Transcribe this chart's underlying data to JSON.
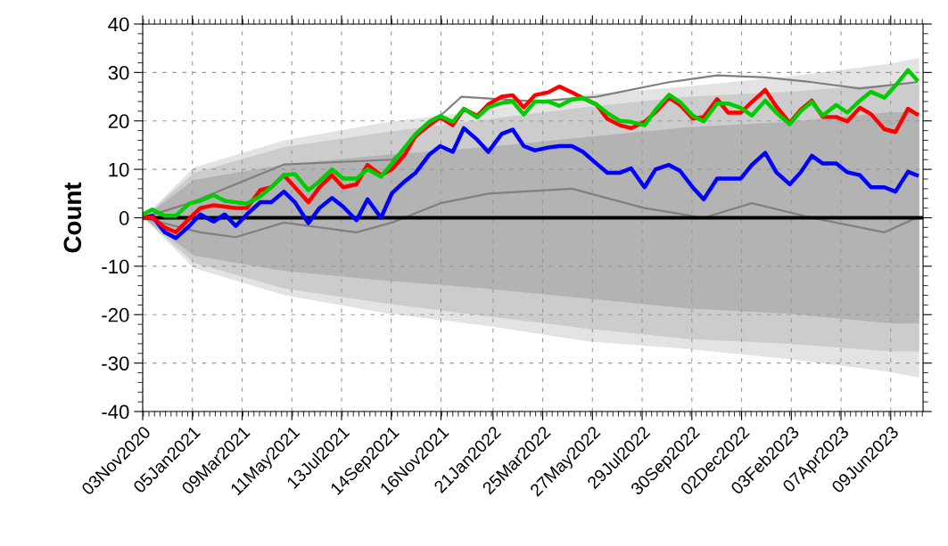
{
  "chart_data": {
    "type": "line",
    "ylabel": "Count",
    "xlim": [
      "2020-11-03",
      "2023-07-20"
    ],
    "ylim": [
      -40,
      40
    ],
    "xticks": [
      {
        "value": "2020-11-03",
        "label": "03Nov2020"
      },
      {
        "value": "2021-01-05",
        "label": "05Jan2021"
      },
      {
        "value": "2021-03-09",
        "label": "09Mar2021"
      },
      {
        "value": "2021-05-11",
        "label": "11May2021"
      },
      {
        "value": "2021-07-13",
        "label": "13Jul2021"
      },
      {
        "value": "2021-09-14",
        "label": "14Sep2021"
      },
      {
        "value": "2021-11-16",
        "label": "16Nov2021"
      },
      {
        "value": "2022-01-21",
        "label": "21Jan2022"
      },
      {
        "value": "2022-03-25",
        "label": "25Mar2022"
      },
      {
        "value": "2022-05-27",
        "label": "27May2022"
      },
      {
        "value": "2022-07-29",
        "label": "29Jul2022"
      },
      {
        "value": "2022-09-30",
        "label": "30Sep2022"
      },
      {
        "value": "2022-12-02",
        "label": "02Dec2022"
      },
      {
        "value": "2023-02-03",
        "label": "03Feb2023"
      },
      {
        "value": "2023-04-07",
        "label": "07Apr2023"
      },
      {
        "value": "2023-06-09",
        "label": "09Jun2023"
      }
    ],
    "yticks": [
      -40,
      -30,
      -20,
      -10,
      0,
      10,
      20,
      30,
      40
    ],
    "grid": true,
    "line_style": "solid",
    "marker": "none",
    "ref_lines": [
      {
        "axis": "y",
        "value": 0,
        "color": "#000000"
      }
    ],
    "x": [
      "2020-11-03",
      "2020-11-15",
      "2020-12-01",
      "2020-12-15",
      "2021-01-01",
      "2021-01-15",
      "2021-02-01",
      "2021-02-15",
      "2021-03-01",
      "2021-03-15",
      "2021-04-01",
      "2021-04-15",
      "2021-05-01",
      "2021-05-15",
      "2021-06-01",
      "2021-06-15",
      "2021-07-01",
      "2021-07-15",
      "2021-08-01",
      "2021-08-15",
      "2021-09-01",
      "2021-09-15",
      "2021-10-01",
      "2021-10-15",
      "2021-11-01",
      "2021-11-15",
      "2021-12-01",
      "2021-12-15",
      "2022-01-01",
      "2022-01-15",
      "2022-02-01",
      "2022-02-15",
      "2022-03-01",
      "2022-03-15",
      "2022-04-01",
      "2022-04-15",
      "2022-05-01",
      "2022-05-15",
      "2022-06-01",
      "2022-06-15",
      "2022-07-01",
      "2022-07-15",
      "2022-08-01",
      "2022-08-15",
      "2022-09-01",
      "2022-09-15",
      "2022-10-01",
      "2022-10-15",
      "2022-11-01",
      "2022-11-15",
      "2022-12-01",
      "2022-12-15",
      "2023-01-01",
      "2023-01-15",
      "2023-02-01",
      "2023-02-15",
      "2023-03-01",
      "2023-03-15",
      "2023-04-01",
      "2023-04-15",
      "2023-05-01",
      "2023-05-15",
      "2023-06-01",
      "2023-06-15",
      "2023-07-01",
      "2023-07-12"
    ],
    "series": [
      {
        "type": "area",
        "color": "#e3e3e3",
        "x": [
          "2020-11-04",
          "2021-01-07",
          "2021-05-02",
          "2021-09-08",
          "2022-01-13",
          "2022-05-21",
          "2022-09-25",
          "2023-02-01",
          "2023-06-08",
          "2023-07-15"
        ],
        "values": [
          0,
          10.4,
          16,
          19.7,
          22.3,
          25.5,
          27.1,
          29.2,
          31.8,
          33
        ]
      },
      {
        "type": "area",
        "color": "#e3e3e3",
        "x": [
          "2020-11-04",
          "2021-01-07",
          "2021-05-02",
          "2021-09-08",
          "2022-01-13",
          "2022-05-21",
          "2022-09-25",
          "2023-02-01",
          "2023-06-08",
          "2023-07-15"
        ],
        "values": [
          0,
          -10.4,
          -16,
          -19.7,
          -22.3,
          -25.5,
          -27.1,
          -29.2,
          -31.8,
          -33
        ]
      },
      {
        "type": "area",
        "color": "#cccccc",
        "x": [
          "2020-11-04",
          "2021-01-07",
          "2021-05-02",
          "2021-09-08",
          "2022-01-13",
          "2022-05-21",
          "2022-09-25",
          "2023-02-01",
          "2023-06-08",
          "2023-07-15"
        ],
        "values": [
          0,
          9.3,
          14.6,
          17.7,
          20.3,
          22.9,
          25,
          26,
          27.6,
          27.6
        ]
      },
      {
        "type": "area",
        "color": "#cccccc",
        "x": [
          "2020-11-04",
          "2021-01-07",
          "2021-05-02",
          "2021-09-08",
          "2022-01-13",
          "2022-05-21",
          "2022-09-25",
          "2023-02-01",
          "2023-06-08",
          "2023-07-15"
        ],
        "values": [
          0,
          -9.3,
          -14.6,
          -17.7,
          -20.3,
          -22.9,
          -25,
          -26,
          -27.6,
          -27.6
        ]
      },
      {
        "type": "area",
        "color": "#b3b3b3",
        "x": [
          "2020-11-04",
          "2021-01-07",
          "2021-05-02",
          "2021-09-08",
          "2022-01-13",
          "2022-05-21",
          "2022-09-25",
          "2023-02-01",
          "2023-06-08",
          "2023-07-15"
        ],
        "values": [
          0,
          7.8,
          11,
          13,
          14.6,
          16.7,
          18.7,
          19.8,
          21.8,
          21.8
        ]
      },
      {
        "type": "area",
        "color": "#b3b3b3",
        "x": [
          "2020-11-04",
          "2021-01-07",
          "2021-05-02",
          "2021-09-08",
          "2022-01-13",
          "2022-05-21",
          "2022-09-25",
          "2023-02-01",
          "2023-06-08",
          "2023-07-15"
        ],
        "values": [
          0,
          -7.8,
          -11,
          -13,
          -14.6,
          -16.7,
          -18.7,
          -19.8,
          -21.8,
          -21.8
        ]
      },
      {
        "type": "line",
        "color": "#808080",
        "x": [
          "2020-11-03",
          "2021-01-01",
          "2021-05-01",
          "2021-09-15",
          "2021-11-15",
          "2021-12-12",
          "2022-03-15",
          "2022-06-01",
          "2022-09-01",
          "2022-11-01",
          "2023-01-01",
          "2023-03-01",
          "2023-05-01",
          "2023-07-12"
        ],
        "values": [
          0,
          3,
          11,
          12,
          21,
          25,
          24,
          25,
          28,
          29.4,
          29,
          28,
          26.7,
          28
        ]
      },
      {
        "type": "line",
        "color": "#808080",
        "x": [
          "2020-11-03",
          "2021-01-15",
          "2021-03-01",
          "2021-05-01",
          "2021-08-01",
          "2021-09-15",
          "2021-11-15",
          "2022-01-15",
          "2022-05-01",
          "2022-08-01",
          "2022-10-15",
          "2022-12-15",
          "2023-03-01",
          "2023-06-01",
          "2023-07-12"
        ],
        "values": [
          0,
          -3,
          -4,
          -1,
          -3,
          -1,
          3,
          5,
          6,
          2,
          0,
          3,
          0,
          -3,
          0
        ]
      },
      {
        "color": "#0000ff",
        "values": [
          0,
          0.4,
          -3,
          -4.2,
          -1.7,
          0.7,
          -0.8,
          0.7,
          -1.7,
          0.7,
          3.2,
          3.2,
          5.4,
          3.2,
          -1.1,
          2,
          4.1,
          2.3,
          -0.5,
          3.8,
          0,
          5.1,
          7.5,
          9.3,
          13,
          14.8,
          13.6,
          18.5,
          16.1,
          13.6,
          17.3,
          18.2,
          14.8,
          13.9,
          14.5,
          14.8,
          14.8,
          13.6,
          11.2,
          9.3,
          9.3,
          10.2,
          6.3,
          10,
          10.9,
          9.7,
          6.3,
          3.8,
          8.1,
          8.1,
          8.1,
          10.9,
          13.4,
          9.4,
          6.9,
          9.4,
          12.8,
          11.2,
          11.2,
          9.4,
          8.8,
          6.3,
          6.3,
          5.4,
          9.5,
          8.8
        ]
      },
      {
        "color": "#ff0000",
        "values": [
          0,
          0.1,
          -2,
          -3,
          -0.2,
          2,
          2.6,
          2.3,
          2,
          2,
          5.7,
          6.3,
          8.8,
          6.3,
          3.2,
          6.3,
          8.8,
          6.3,
          6.9,
          10.9,
          8.8,
          10,
          13,
          17,
          19.1,
          20.7,
          19.1,
          22.5,
          21,
          23.4,
          25,
          25.3,
          22.8,
          25.3,
          25.9,
          27.1,
          25.9,
          24.7,
          23.4,
          20.4,
          19.1,
          18.5,
          19.8,
          21.8,
          24.8,
          23.3,
          20.5,
          20.8,
          24.5,
          21.7,
          21.7,
          23.9,
          26.4,
          23,
          19.6,
          22.3,
          24.2,
          20.8,
          20.8,
          19.9,
          22.7,
          21.4,
          18.3,
          17.7,
          22.5,
          21.4
        ]
      },
      {
        "color": "#00cc00",
        "values": [
          0.7,
          1.7,
          0.4,
          0.4,
          2.9,
          3.5,
          4.7,
          3.5,
          3.2,
          2.9,
          4.4,
          6.3,
          8.8,
          9,
          5.7,
          7.5,
          10,
          8.1,
          8.1,
          10,
          8.5,
          11.2,
          14.5,
          17.3,
          19.8,
          21,
          19.8,
          22.5,
          20.7,
          22.8,
          23.7,
          24,
          21.3,
          24,
          24,
          23.1,
          24.4,
          24.7,
          23.4,
          21.6,
          20,
          19.8,
          19.1,
          22.3,
          25.4,
          23.9,
          21.1,
          19.9,
          23.6,
          23.6,
          22.7,
          21.1,
          24.2,
          21.7,
          19.3,
          22,
          23.9,
          21.1,
          23.3,
          21.7,
          24.2,
          26,
          24.8,
          27.3,
          30.5,
          28.5
        ]
      }
    ]
  }
}
